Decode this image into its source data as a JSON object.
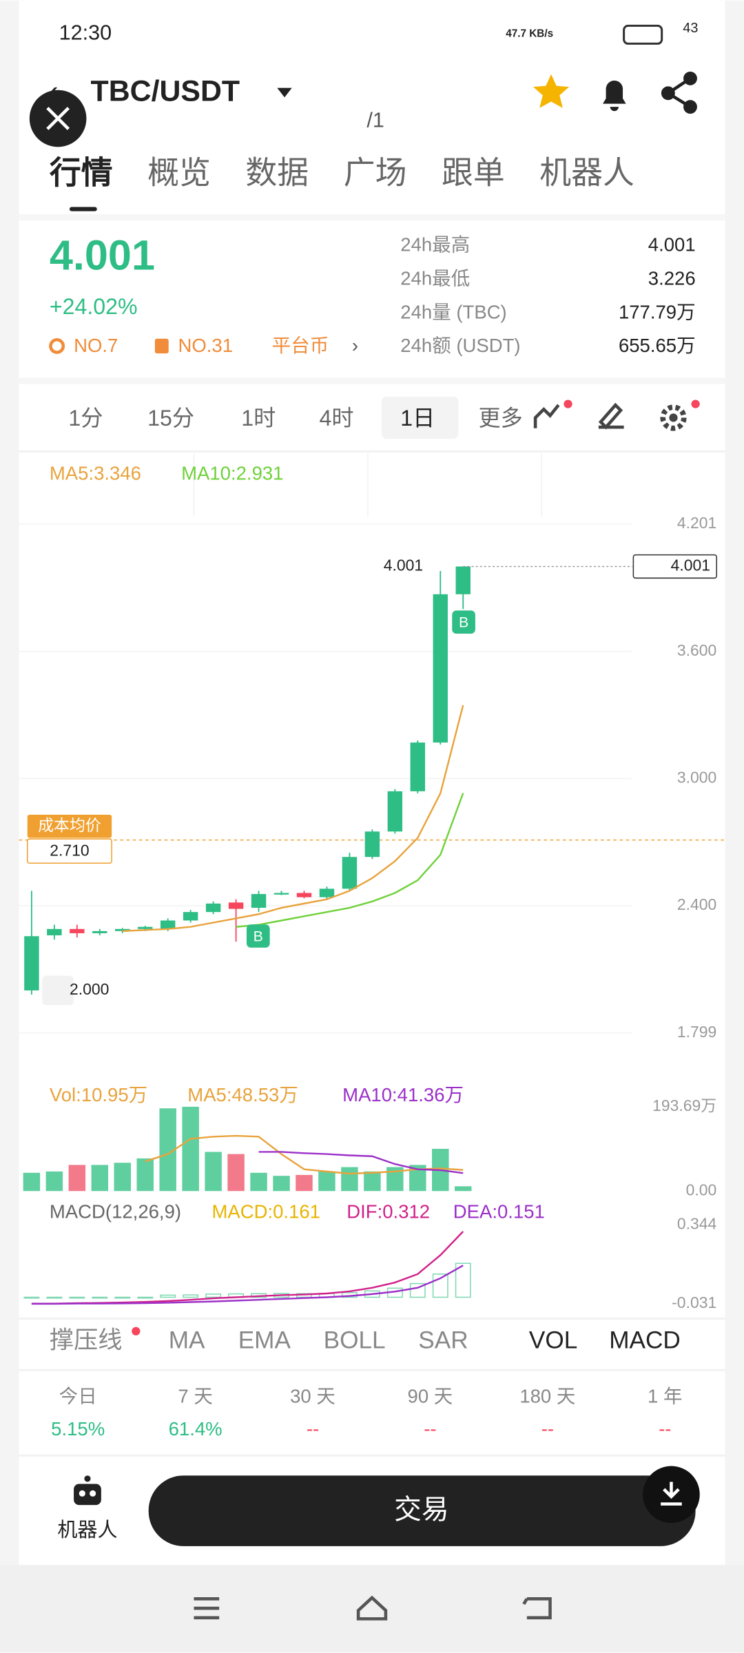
{
  "status_bar": {
    "time": "12:30",
    "speed": "47.7 KB/s",
    "battery": "43"
  },
  "header": {
    "pair": "TBC/USDT",
    "page_indicator": "/1"
  },
  "tabs": [
    "行情",
    "概览",
    "数据",
    "广场",
    "跟单",
    "机器人"
  ],
  "ticker": {
    "price": "4.001",
    "change": "+24.02%",
    "rank1": "NO.7",
    "rank2": "NO.31",
    "tag": "平台币",
    "stats": [
      {
        "label": "24h最高",
        "value": "4.001"
      },
      {
        "label": "24h最低",
        "value": "3.226"
      },
      {
        "label": "24h量 (TBC)",
        "value": "177.79万"
      },
      {
        "label": "24h额 (USDT)",
        "value": "655.65万"
      }
    ]
  },
  "timeframes": [
    "1分",
    "15分",
    "1时",
    "4时",
    "1日",
    "更多"
  ],
  "kline": {
    "ma5_label": "MA5:3.346",
    "ma10_label": "MA10:2.931",
    "ylim": [
      1.799,
      4.201
    ],
    "yticks": [
      4.201,
      {
        "value": 3.6,
        "label": "3.600"
      },
      {
        "value": 3.0,
        "label": "3.000"
      },
      {
        "value": 2.4,
        "label": "2.400"
      },
      1.799
    ],
    "candles": [
      {
        "open": 2.0,
        "high": 2.47,
        "low": 1.98,
        "close": 2.256
      },
      {
        "open": 2.26,
        "high": 2.31,
        "low": 2.24,
        "close": 2.29
      },
      {
        "open": 2.29,
        "high": 2.31,
        "low": 2.25,
        "close": 2.27
      },
      {
        "open": 2.27,
        "high": 2.29,
        "low": 2.26,
        "close": 2.28
      },
      {
        "open": 2.28,
        "high": 2.295,
        "low": 2.27,
        "close": 2.29
      },
      {
        "open": 2.29,
        "high": 2.305,
        "low": 2.28,
        "close": 2.3
      },
      {
        "open": 2.29,
        "high": 2.34,
        "low": 2.28,
        "close": 2.33
      },
      {
        "open": 2.33,
        "high": 2.38,
        "low": 2.32,
        "close": 2.37
      },
      {
        "open": 2.37,
        "high": 2.42,
        "low": 2.36,
        "close": 2.41
      },
      {
        "open": 2.415,
        "high": 2.43,
        "low": 2.23,
        "close": 2.385
      },
      {
        "open": 2.39,
        "high": 2.47,
        "low": 2.37,
        "close": 2.455
      },
      {
        "open": 2.455,
        "high": 2.47,
        "low": 2.45,
        "close": 2.46
      },
      {
        "open": 2.46,
        "high": 2.47,
        "low": 2.435,
        "close": 2.44
      },
      {
        "open": 2.44,
        "high": 2.49,
        "low": 2.43,
        "close": 2.48
      },
      {
        "open": 2.48,
        "high": 2.65,
        "low": 2.47,
        "close": 2.63
      },
      {
        "open": 2.63,
        "high": 2.76,
        "low": 2.62,
        "close": 2.75
      },
      {
        "open": 2.75,
        "high": 2.95,
        "low": 2.74,
        "close": 2.94
      },
      {
        "open": 2.94,
        "high": 3.18,
        "low": 2.93,
        "close": 3.17
      },
      {
        "open": 3.17,
        "high": 3.98,
        "low": 3.16,
        "close": 3.87
      },
      {
        "open": 3.87,
        "high": 4.001,
        "low": 3.8,
        "close": 4.001
      }
    ],
    "ma5": [
      null,
      null,
      null,
      null,
      2.28,
      2.285,
      2.29,
      2.3,
      2.32,
      2.34,
      2.36,
      2.39,
      2.41,
      2.43,
      2.47,
      2.53,
      2.61,
      2.72,
      2.93,
      3.346
    ],
    "ma10": [
      null,
      null,
      null,
      null,
      null,
      null,
      null,
      null,
      null,
      2.3,
      2.31,
      2.33,
      2.35,
      2.37,
      2.39,
      2.42,
      2.46,
      2.52,
      2.64,
      2.931
    ],
    "cost_avg": {
      "label": "成本均价",
      "value": 2.71,
      "value_label": "2.710"
    },
    "low_marker": {
      "value": 2.0,
      "label": "2.000"
    },
    "buy_marks": [
      "B",
      "B"
    ]
  },
  "volume": {
    "label": "Vol:10.95万",
    "ma5_label": "MA5:48.53万",
    "ma10_label": "MA10:41.36万",
    "ylim": [
      0,
      193.69
    ],
    "yticks": [
      {
        "value": 193.69,
        "label": "193.69万"
      },
      {
        "value": 0,
        "label": "0.00"
      }
    ],
    "values": [
      42,
      45,
      60,
      60,
      65,
      75,
      190,
      193.69,
      90,
      85,
      42,
      35,
      37,
      45,
      55,
      45,
      55,
      60,
      97,
      10.95
    ],
    "ma5": [
      null,
      null,
      null,
      null,
      null,
      68,
      85,
      120,
      125,
      127,
      125,
      85,
      50,
      45,
      40,
      42,
      45,
      50,
      52,
      48.53
    ],
    "ma10": [
      null,
      null,
      null,
      null,
      null,
      null,
      null,
      null,
      null,
      null,
      90,
      90,
      87,
      85,
      82,
      80,
      62,
      50,
      48,
      41.36
    ]
  },
  "macd": {
    "label": "MACD(12,26,9)",
    "macd_label": "MACD:0.161",
    "dif_label": "DIF:0.312",
    "dea_label": "DEA:0.151",
    "ylim": [
      -0.031,
      0.344
    ],
    "yticks": [
      0.344,
      -0.031
    ],
    "dif": [
      -0.03,
      -0.03,
      -0.028,
      -0.027,
      -0.025,
      -0.022,
      -0.018,
      -0.012,
      -0.005,
      0.0,
      0.005,
      0.01,
      0.013,
      0.018,
      0.028,
      0.045,
      0.07,
      0.11,
      0.2,
      0.312
    ],
    "dea": [
      -0.031,
      -0.031,
      -0.03,
      -0.03,
      -0.029,
      -0.028,
      -0.026,
      -0.023,
      -0.02,
      -0.016,
      -0.012,
      -0.008,
      -0.004,
      0.0,
      0.006,
      0.015,
      0.027,
      0.045,
      0.09,
      0.151
    ],
    "hist": [
      0,
      0,
      0,
      0,
      0,
      0,
      0.01,
      0.011,
      0.015,
      0.016,
      0.017,
      0.018,
      0.017,
      0.018,
      0.022,
      0.03,
      0.043,
      0.065,
      0.11,
      0.161
    ]
  },
  "indicators": [
    "撑压线",
    "MA",
    "EMA",
    "BOLL",
    "SAR",
    "VOL",
    "MACD"
  ],
  "returns": [
    {
      "period": "今日",
      "value": "5.15%"
    },
    {
      "period": "7 天",
      "value": "61.4%"
    },
    {
      "period": "30 天",
      "value": "--"
    },
    {
      "period": "90 天",
      "value": "--"
    },
    {
      "period": "180 天",
      "value": "--"
    },
    {
      "period": "1 年",
      "value": "--"
    }
  ],
  "bottom": {
    "robot": "机器人",
    "trade": "交易"
  }
}
